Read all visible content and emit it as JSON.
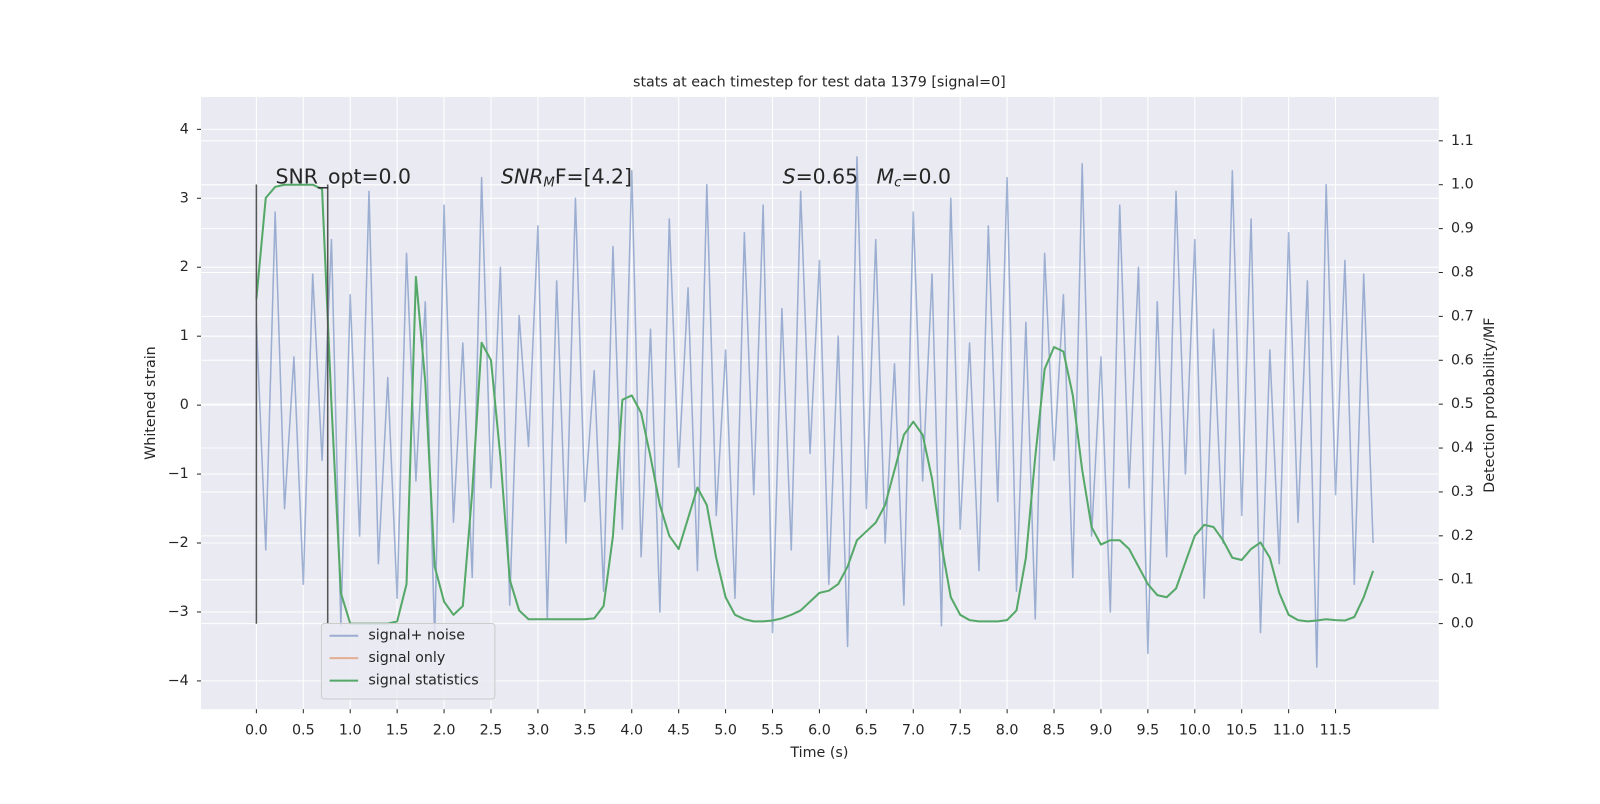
{
  "chart_data": {
    "type": "line",
    "title": "stats at each timestep for test data 1379 [signal=0]",
    "xlabel": "Time (s)",
    "ylabel": "Whitened strain",
    "y2label": "Detection probability/MF",
    "x": [
      0,
      0.1,
      0.2,
      0.3,
      0.4,
      0.5,
      0.6,
      0.7,
      0.8,
      0.9,
      1,
      1.1,
      1.2,
      1.3,
      1.4,
      1.5,
      1.6,
      1.7,
      1.8,
      1.9,
      2,
      2.1,
      2.2,
      2.3,
      2.4,
      2.5,
      2.6,
      2.7,
      2.8,
      2.9,
      3,
      3.1,
      3.2,
      3.3,
      3.4,
      3.5,
      3.6,
      3.7,
      3.8,
      3.9,
      4,
      4.1,
      4.2,
      4.3,
      4.4,
      4.5,
      4.6,
      4.7,
      4.8,
      4.9,
      5,
      5.1,
      5.2,
      5.3,
      5.4,
      5.5,
      5.6,
      5.7,
      5.8,
      5.9,
      6,
      6.1,
      6.2,
      6.3,
      6.4,
      6.5,
      6.6,
      6.7,
      6.8,
      6.9,
      7,
      7.1,
      7.2,
      7.3,
      7.4,
      7.5,
      7.6,
      7.7,
      7.8,
      7.9,
      8,
      8.1,
      8.2,
      8.3,
      8.4,
      8.5,
      8.6,
      8.7,
      8.8,
      8.9,
      9,
      9.1,
      9.2,
      9.3,
      9.4,
      9.5,
      9.6,
      9.7,
      9.8,
      9.9,
      10,
      10.1,
      10.2,
      10.3,
      10.4,
      10.5,
      10.6,
      10.7,
      10.8,
      10.9,
      11,
      11.1,
      11.2,
      11.3,
      11.4,
      11.5,
      11.6,
      11.7,
      11.8,
      11.9
    ],
    "series": [
      {
        "name": "signal+ noise",
        "color": "#4c72b0",
        "opacity": 0.5,
        "axis": "y",
        "values": [
          1.2,
          -2.1,
          2.8,
          -1.5,
          0.7,
          -2.6,
          1.9,
          -0.8,
          2.4,
          -3.2,
          1.6,
          -1.9,
          3.1,
          -2.3,
          0.4,
          -2.8,
          2.2,
          -1.1,
          1.5,
          -3.4,
          2.9,
          -1.7,
          0.9,
          -2.5,
          3.3,
          -1.2,
          2.0,
          -2.9,
          1.3,
          -0.6,
          2.6,
          -3.1,
          1.8,
          -2.0,
          3.0,
          -1.4,
          0.5,
          -2.7,
          2.3,
          -1.8,
          3.4,
          -2.2,
          1.1,
          -3.0,
          2.7,
          -0.9,
          1.7,
          -2.4,
          3.2,
          -1.6,
          0.8,
          -2.8,
          2.5,
          -1.3,
          2.9,
          -3.3,
          1.4,
          -2.1,
          3.1,
          -0.7,
          2.1,
          -2.6,
          1.0,
          -3.5,
          3.6,
          -1.5,
          2.4,
          -2.0,
          0.6,
          -2.9,
          2.8,
          -1.1,
          1.9,
          -3.2,
          3.0,
          -1.8,
          0.9,
          -2.4,
          2.6,
          -1.4,
          3.3,
          -2.7,
          1.2,
          -3.1,
          2.2,
          -0.8,
          1.6,
          -2.5,
          3.5,
          -1.9,
          0.7,
          -3.0,
          2.9,
          -1.2,
          2.0,
          -3.6,
          1.5,
          -2.2,
          3.1,
          -1.0,
          2.4,
          -2.8,
          1.1,
          -2.0,
          3.4,
          -1.6,
          2.7,
          -3.3,
          0.8,
          -2.3,
          2.5,
          -1.7,
          1.8,
          -3.8,
          3.2,
          -1.3,
          2.1,
          -2.6,
          1.9,
          -2.0
        ]
      },
      {
        "name": "signal only",
        "color": "#dd8452",
        "opacity": 0.6,
        "axis": "y",
        "values": [
          null,
          null,
          null,
          null,
          null,
          null,
          null,
          null,
          null,
          null,
          null,
          null,
          null,
          null,
          null,
          null,
          null,
          null,
          null,
          null,
          null,
          null,
          null,
          null,
          null,
          null,
          null,
          null,
          null,
          null,
          null,
          null,
          null,
          null,
          null,
          null,
          null,
          null,
          null,
          null,
          null,
          null,
          null,
          null,
          null,
          null,
          null,
          null,
          null,
          null,
          null,
          null,
          null,
          null,
          null,
          null,
          null,
          null,
          null,
          null,
          null,
          null,
          null,
          null,
          null,
          null,
          null,
          null,
          null,
          null,
          null,
          null,
          null,
          null,
          null,
          null,
          null,
          null,
          null,
          null,
          null,
          null,
          null,
          null,
          null,
          null,
          null,
          null,
          null,
          null,
          null,
          null,
          null,
          null,
          null,
          null,
          null,
          null,
          null,
          null,
          null,
          null,
          null,
          null,
          null,
          null,
          null,
          null,
          null,
          null,
          null,
          null,
          null,
          null,
          null,
          null,
          null,
          null,
          null,
          null
        ]
      },
      {
        "name": "signal statistics",
        "color": "#55a868",
        "opacity": 1,
        "axis": "y2",
        "values": [
          0.74,
          0.97,
          0.995,
          1.0,
          1.0,
          1.0,
          1.0,
          0.99,
          0.5,
          0.07,
          0,
          0,
          0,
          0,
          0,
          0.005,
          0.09,
          0.79,
          0.55,
          0.13,
          0.05,
          0.02,
          0.04,
          0.3,
          0.64,
          0.6,
          0.38,
          0.1,
          0.03,
          0.01,
          0.01,
          0.01,
          0.01,
          0.01,
          0.01,
          0.01,
          0.012,
          0.04,
          0.2,
          0.51,
          0.52,
          0.48,
          0.38,
          0.27,
          0.2,
          0.17,
          0.24,
          0.31,
          0.27,
          0.15,
          0.06,
          0.02,
          0.01,
          0.005,
          0.005,
          0.007,
          0.012,
          0.02,
          0.03,
          0.05,
          0.07,
          0.075,
          0.09,
          0.13,
          0.19,
          0.21,
          0.23,
          0.27,
          0.35,
          0.43,
          0.46,
          0.43,
          0.33,
          0.18,
          0.06,
          0.02,
          0.008,
          0.005,
          0.005,
          0.005,
          0.008,
          0.03,
          0.15,
          0.38,
          0.58,
          0.63,
          0.62,
          0.52,
          0.35,
          0.22,
          0.18,
          0.19,
          0.19,
          0.17,
          0.13,
          0.09,
          0.065,
          0.06,
          0.08,
          0.14,
          0.2,
          0.225,
          0.22,
          0.19,
          0.15,
          0.145,
          0.17,
          0.185,
          0.15,
          0.07,
          0.02,
          0.008,
          0.005,
          0.007,
          0.01,
          0.008,
          0.007,
          0.015,
          0.06,
          0.12
        ]
      }
    ],
    "vlines": [
      0,
      0.76
    ],
    "vline_range": [
      -3.17,
      3.2
    ],
    "vline_color": "#555555",
    "annotations": [
      {
        "text": "SNR_opt=0.0"
      },
      {
        "text": "SNR",
        "sub": "M",
        "tail": "F=[4.2]"
      },
      {
        "text": "S",
        "tail": "=0.65"
      },
      {
        "text": "M",
        "sub": "c",
        "tail": "=0.0"
      }
    ],
    "xlim": [
      -0.59,
      12.6
    ],
    "ylim": [
      -4.41,
      4.47
    ],
    "y2lim": [
      -0.195,
      1.2
    ],
    "xticks": [
      {
        "value": 0,
        "label": "0.0"
      },
      0.5,
      {
        "value": 1,
        "label": "1.0"
      },
      1.5,
      {
        "value": 2,
        "label": "2.0"
      },
      2.5,
      {
        "value": 3,
        "label": "3.0"
      },
      3.5,
      {
        "value": 4,
        "label": "4.0"
      },
      4.5,
      {
        "value": 5,
        "label": "5.0"
      },
      5.5,
      {
        "value": 6,
        "label": "6.0"
      },
      6.5,
      {
        "value": 7,
        "label": "7.0"
      },
      7.5,
      {
        "value": 8,
        "label": "8.0"
      },
      8.5,
      {
        "value": 9,
        "label": "9.0"
      },
      9.5,
      {
        "value": 10,
        "label": "10.0"
      },
      10.5,
      {
        "value": 11,
        "label": "11.0"
      },
      11.5
    ],
    "yticks": [
      {
        "value": -4,
        "label": "−4"
      },
      {
        "value": -3,
        "label": "−3"
      },
      {
        "value": -2,
        "label": "−2"
      },
      {
        "value": -1,
        "label": "−1"
      },
      0,
      1,
      2,
      3,
      4
    ],
    "y2ticks": [
      {
        "value": 0,
        "label": "0.0"
      },
      0.1,
      0.2,
      0.3,
      0.4,
      0.5,
      0.6,
      0.7,
      0.8,
      0.9,
      {
        "value": 1,
        "label": "1.0"
      },
      1.1
    ],
    "grid": true,
    "legend": "lower left"
  }
}
